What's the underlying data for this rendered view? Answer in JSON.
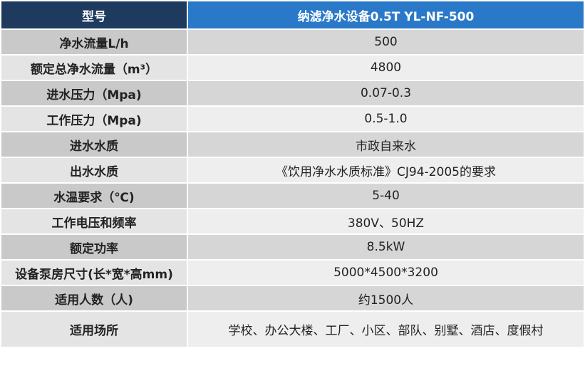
{
  "table": {
    "header": [
      "型号",
      "纳滤净水设备0.5T YL-NF-500"
    ],
    "rows": [
      [
        "净水流量L/h",
        "500"
      ],
      [
        "额定总净水流量（m³）",
        "4800"
      ],
      [
        "进水压力（Mpa)",
        "0.07-0.3"
      ],
      [
        "工作压力（Mpa)",
        "0.5-1.0"
      ],
      [
        "进水水质",
        "市政自来水"
      ],
      [
        "出水水质",
        "《饮用净水水质标准》CJ94-2005的要求"
      ],
      [
        "水温要求（℃)",
        "5-40"
      ],
      [
        "工作电压和频率",
        "380V、50HZ"
      ],
      [
        "额定功率",
        "8.5kW"
      ],
      [
        "设备泵房尺寸(长*宽*高mm)",
        "5000*4500*3200"
      ],
      [
        "适用人数（人)",
        "约1500人"
      ],
      [
        "适用场所",
        "学校、办公大楼、工厂、小区、部队、别墅、酒店、度假村"
      ]
    ]
  }
}
